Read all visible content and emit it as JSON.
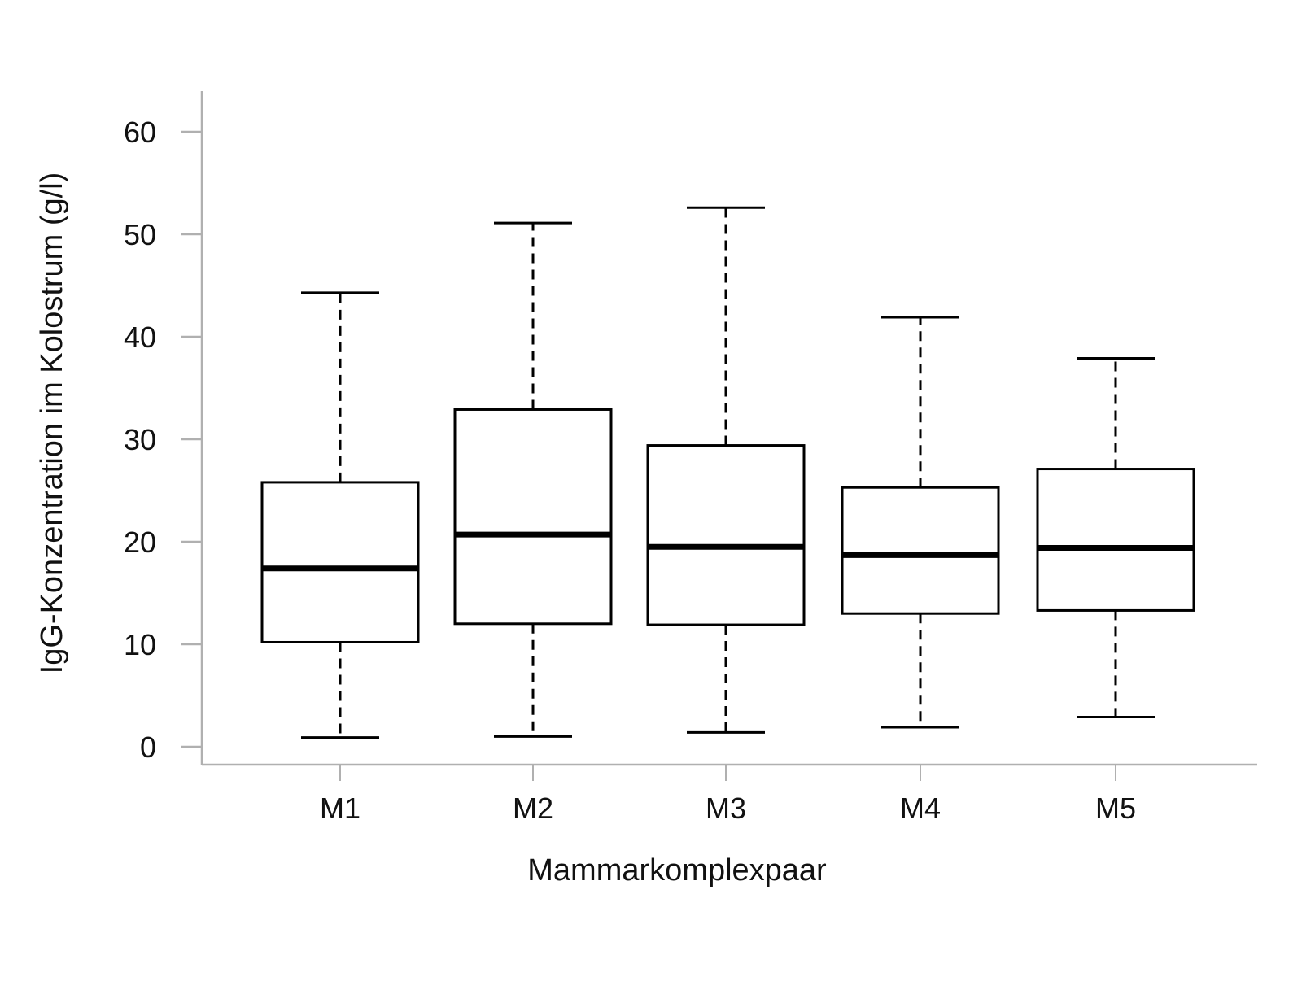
{
  "chart_data": {
    "type": "boxplot",
    "title": "",
    "xlabel": "Mammarkomplexpaar",
    "ylabel": "IgG-Konzentration im Kolostrum (g/l)",
    "ylim": [
      0,
      60
    ],
    "yticks": [
      0,
      10,
      20,
      30,
      40,
      50,
      60
    ],
    "grid": false,
    "legend": null,
    "categories": [
      "M1",
      "M2",
      "M3",
      "M4",
      "M5"
    ],
    "series": [
      {
        "name": "M1",
        "whisker_low": 0.9,
        "q1": 10.2,
        "median": 17.4,
        "q3": 25.8,
        "whisker_high": 44.3
      },
      {
        "name": "M2",
        "whisker_low": 1.0,
        "q1": 12.0,
        "median": 20.7,
        "q3": 32.9,
        "whisker_high": 51.1
      },
      {
        "name": "M3",
        "whisker_low": 1.4,
        "q1": 11.9,
        "median": 19.5,
        "q3": 29.4,
        "whisker_high": 52.6
      },
      {
        "name": "M4",
        "whisker_low": 1.9,
        "q1": 13.0,
        "median": 18.7,
        "q3": 25.3,
        "whisker_high": 41.9
      },
      {
        "name": "M5",
        "whisker_low": 2.9,
        "q1": 13.3,
        "median": 19.4,
        "q3": 27.1,
        "whisker_high": 37.9
      }
    ]
  },
  "colors": {
    "axis": "#b0b0b0",
    "box_stroke": "#000000",
    "box_fill": "#ffffff",
    "text": "#111111"
  }
}
